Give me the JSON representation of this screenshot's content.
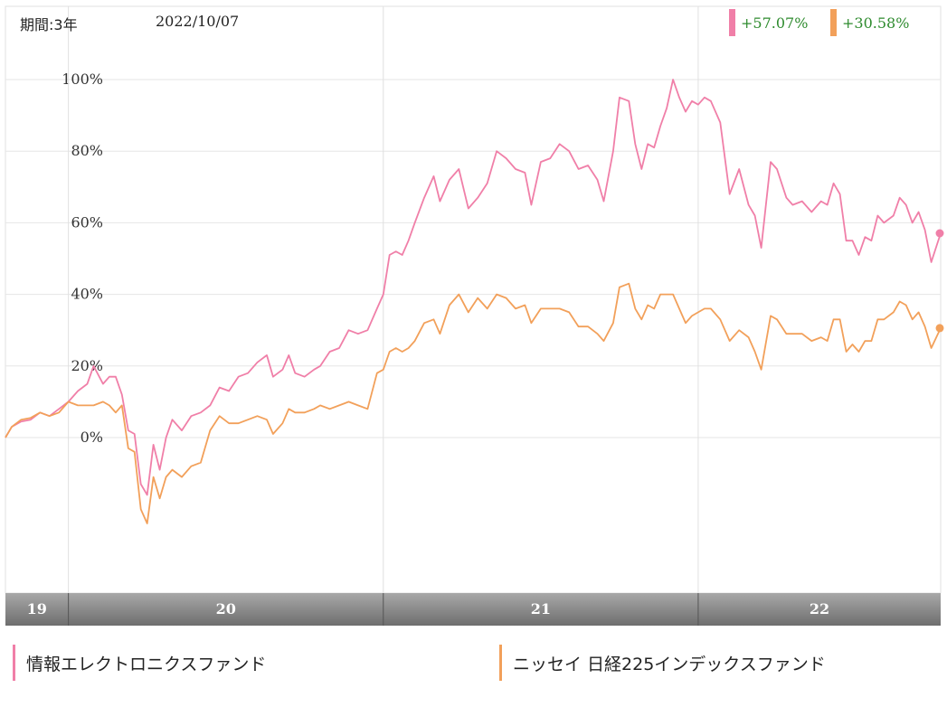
{
  "header": {
    "period": "期間:3年",
    "date": "2022/10/07"
  },
  "summary": [
    {
      "value": "+57.07%",
      "color": "#f07fa8"
    },
    {
      "value": "+30.58%",
      "color": "#f2a05a"
    }
  ],
  "legend": [
    {
      "name": "情報エレクトロニクスファンド",
      "color": "#f07fa8"
    },
    {
      "name": "ニッセイ 日経225インデックスファンド",
      "color": "#f2a05a"
    }
  ],
  "chart_data": {
    "type": "line",
    "x_labels": [
      "19",
      "20",
      "21",
      "22"
    ],
    "y_ticks": [
      0,
      20,
      40,
      60,
      80,
      100
    ],
    "y_tick_labels": [
      "0%",
      "20%",
      "40%",
      "60%",
      "80%",
      "100%"
    ],
    "ylim": [
      -30,
      110
    ],
    "x_range": [
      2019.8,
      2022.77
    ],
    "grid": true,
    "series": [
      {
        "name": "情報エレクトロニクスファンド",
        "color": "#f07fa8",
        "end_value": 57.07,
        "points": [
          [
            2019.8,
            0
          ],
          [
            2019.82,
            3
          ],
          [
            2019.85,
            4.5
          ],
          [
            2019.88,
            5
          ],
          [
            2019.91,
            7
          ],
          [
            2019.94,
            6
          ],
          [
            2019.97,
            8
          ],
          [
            2020.0,
            10
          ],
          [
            2020.03,
            13
          ],
          [
            2020.06,
            15
          ],
          [
            2020.08,
            20
          ],
          [
            2020.11,
            15
          ],
          [
            2020.13,
            17
          ],
          [
            2020.15,
            17
          ],
          [
            2020.17,
            12
          ],
          [
            2020.19,
            2
          ],
          [
            2020.21,
            1
          ],
          [
            2020.23,
            -13
          ],
          [
            2020.25,
            -16
          ],
          [
            2020.27,
            -2
          ],
          [
            2020.29,
            -9
          ],
          [
            2020.31,
            0
          ],
          [
            2020.33,
            5
          ],
          [
            2020.36,
            2
          ],
          [
            2020.39,
            6
          ],
          [
            2020.42,
            7
          ],
          [
            2020.45,
            9
          ],
          [
            2020.48,
            14
          ],
          [
            2020.51,
            13
          ],
          [
            2020.54,
            17
          ],
          [
            2020.57,
            18
          ],
          [
            2020.6,
            21
          ],
          [
            2020.63,
            23
          ],
          [
            2020.65,
            17
          ],
          [
            2020.68,
            19
          ],
          [
            2020.7,
            23
          ],
          [
            2020.72,
            18
          ],
          [
            2020.75,
            17
          ],
          [
            2020.78,
            19
          ],
          [
            2020.8,
            20
          ],
          [
            2020.83,
            24
          ],
          [
            2020.86,
            25
          ],
          [
            2020.89,
            30
          ],
          [
            2020.92,
            29
          ],
          [
            2020.95,
            30
          ],
          [
            2020.98,
            36
          ],
          [
            2021.0,
            40
          ],
          [
            2021.02,
            51
          ],
          [
            2021.04,
            52
          ],
          [
            2021.06,
            51
          ],
          [
            2021.08,
            55
          ],
          [
            2021.1,
            60
          ],
          [
            2021.13,
            67
          ],
          [
            2021.16,
            73
          ],
          [
            2021.18,
            66
          ],
          [
            2021.21,
            72
          ],
          [
            2021.24,
            75
          ],
          [
            2021.27,
            64
          ],
          [
            2021.3,
            67
          ],
          [
            2021.33,
            71
          ],
          [
            2021.36,
            80
          ],
          [
            2021.39,
            78
          ],
          [
            2021.42,
            75
          ],
          [
            2021.45,
            74
          ],
          [
            2021.47,
            65
          ],
          [
            2021.5,
            77
          ],
          [
            2021.53,
            78
          ],
          [
            2021.56,
            82
          ],
          [
            2021.59,
            80
          ],
          [
            2021.62,
            75
          ],
          [
            2021.65,
            76
          ],
          [
            2021.68,
            72
          ],
          [
            2021.7,
            66
          ],
          [
            2021.73,
            80
          ],
          [
            2021.75,
            95
          ],
          [
            2021.78,
            94
          ],
          [
            2021.8,
            82
          ],
          [
            2021.82,
            75
          ],
          [
            2021.84,
            82
          ],
          [
            2021.86,
            81
          ],
          [
            2021.88,
            87
          ],
          [
            2021.9,
            92
          ],
          [
            2021.92,
            100
          ],
          [
            2021.94,
            95
          ],
          [
            2021.96,
            91
          ],
          [
            2021.98,
            94
          ],
          [
            2022.0,
            93
          ],
          [
            2022.02,
            95
          ],
          [
            2022.04,
            94
          ],
          [
            2022.07,
            88
          ],
          [
            2022.1,
            68
          ],
          [
            2022.13,
            75
          ],
          [
            2022.16,
            65
          ],
          [
            2022.18,
            62
          ],
          [
            2022.2,
            53
          ],
          [
            2022.23,
            77
          ],
          [
            2022.25,
            75
          ],
          [
            2022.28,
            67
          ],
          [
            2022.3,
            65
          ],
          [
            2022.33,
            66
          ],
          [
            2022.36,
            63
          ],
          [
            2022.39,
            66
          ],
          [
            2022.41,
            65
          ],
          [
            2022.43,
            71
          ],
          [
            2022.45,
            68
          ],
          [
            2022.47,
            55
          ],
          [
            2022.49,
            55
          ],
          [
            2022.51,
            51
          ],
          [
            2022.53,
            56
          ],
          [
            2022.55,
            55
          ],
          [
            2022.57,
            62
          ],
          [
            2022.59,
            60
          ],
          [
            2022.62,
            62
          ],
          [
            2022.64,
            67
          ],
          [
            2022.66,
            65
          ],
          [
            2022.68,
            60
          ],
          [
            2022.7,
            63
          ],
          [
            2022.72,
            58
          ],
          [
            2022.74,
            49
          ],
          [
            2022.77,
            57.07
          ]
        ]
      },
      {
        "name": "ニッセイ 日経225インデックスファンド",
        "color": "#f2a05a",
        "end_value": 30.58,
        "points": [
          [
            2019.8,
            0
          ],
          [
            2019.82,
            3
          ],
          [
            2019.85,
            5
          ],
          [
            2019.88,
            5.5
          ],
          [
            2019.91,
            7
          ],
          [
            2019.94,
            6
          ],
          [
            2019.97,
            7
          ],
          [
            2020.0,
            10
          ],
          [
            2020.03,
            9
          ],
          [
            2020.06,
            9
          ],
          [
            2020.08,
            9
          ],
          [
            2020.11,
            10
          ],
          [
            2020.13,
            9
          ],
          [
            2020.15,
            7
          ],
          [
            2020.17,
            9
          ],
          [
            2020.19,
            -3
          ],
          [
            2020.21,
            -4
          ],
          [
            2020.23,
            -20
          ],
          [
            2020.25,
            -24
          ],
          [
            2020.27,
            -11
          ],
          [
            2020.29,
            -17
          ],
          [
            2020.31,
            -11
          ],
          [
            2020.33,
            -9
          ],
          [
            2020.36,
            -11
          ],
          [
            2020.39,
            -8
          ],
          [
            2020.42,
            -7
          ],
          [
            2020.45,
            2
          ],
          [
            2020.48,
            6
          ],
          [
            2020.51,
            4
          ],
          [
            2020.54,
            4
          ],
          [
            2020.57,
            5
          ],
          [
            2020.6,
            6
          ],
          [
            2020.63,
            5
          ],
          [
            2020.65,
            1
          ],
          [
            2020.68,
            4
          ],
          [
            2020.7,
            8
          ],
          [
            2020.72,
            7
          ],
          [
            2020.75,
            7
          ],
          [
            2020.78,
            8
          ],
          [
            2020.8,
            9
          ],
          [
            2020.83,
            8
          ],
          [
            2020.86,
            9
          ],
          [
            2020.89,
            10
          ],
          [
            2020.92,
            9
          ],
          [
            2020.95,
            8
          ],
          [
            2020.98,
            18
          ],
          [
            2021.0,
            19
          ],
          [
            2021.02,
            24
          ],
          [
            2021.04,
            25
          ],
          [
            2021.06,
            24
          ],
          [
            2021.08,
            25
          ],
          [
            2021.1,
            27
          ],
          [
            2021.13,
            32
          ],
          [
            2021.16,
            33
          ],
          [
            2021.18,
            29
          ],
          [
            2021.21,
            37
          ],
          [
            2021.24,
            40
          ],
          [
            2021.27,
            35
          ],
          [
            2021.3,
            39
          ],
          [
            2021.33,
            36
          ],
          [
            2021.36,
            40
          ],
          [
            2021.39,
            39
          ],
          [
            2021.42,
            36
          ],
          [
            2021.45,
            37
          ],
          [
            2021.47,
            32
          ],
          [
            2021.5,
            36
          ],
          [
            2021.53,
            36
          ],
          [
            2021.56,
            36
          ],
          [
            2021.59,
            35
          ],
          [
            2021.62,
            31
          ],
          [
            2021.65,
            31
          ],
          [
            2021.68,
            29
          ],
          [
            2021.7,
            27
          ],
          [
            2021.73,
            32
          ],
          [
            2021.75,
            42
          ],
          [
            2021.78,
            43
          ],
          [
            2021.8,
            36
          ],
          [
            2021.82,
            33
          ],
          [
            2021.84,
            37
          ],
          [
            2021.86,
            36
          ],
          [
            2021.88,
            40
          ],
          [
            2021.9,
            40
          ],
          [
            2021.92,
            40
          ],
          [
            2021.94,
            36
          ],
          [
            2021.96,
            32
          ],
          [
            2021.98,
            34
          ],
          [
            2022.0,
            35
          ],
          [
            2022.02,
            36
          ],
          [
            2022.04,
            36
          ],
          [
            2022.07,
            33
          ],
          [
            2022.1,
            27
          ],
          [
            2022.13,
            30
          ],
          [
            2022.16,
            28
          ],
          [
            2022.18,
            24
          ],
          [
            2022.2,
            19
          ],
          [
            2022.23,
            34
          ],
          [
            2022.25,
            33
          ],
          [
            2022.28,
            29
          ],
          [
            2022.3,
            29
          ],
          [
            2022.33,
            29
          ],
          [
            2022.36,
            27
          ],
          [
            2022.39,
            28
          ],
          [
            2022.41,
            27
          ],
          [
            2022.43,
            33
          ],
          [
            2022.45,
            33
          ],
          [
            2022.47,
            24
          ],
          [
            2022.49,
            26
          ],
          [
            2022.51,
            24
          ],
          [
            2022.53,
            27
          ],
          [
            2022.55,
            27
          ],
          [
            2022.57,
            33
          ],
          [
            2022.59,
            33
          ],
          [
            2022.62,
            35
          ],
          [
            2022.64,
            38
          ],
          [
            2022.66,
            37
          ],
          [
            2022.68,
            33
          ],
          [
            2022.7,
            35
          ],
          [
            2022.72,
            31
          ],
          [
            2022.74,
            25
          ],
          [
            2022.77,
            30.58
          ]
        ]
      }
    ]
  }
}
